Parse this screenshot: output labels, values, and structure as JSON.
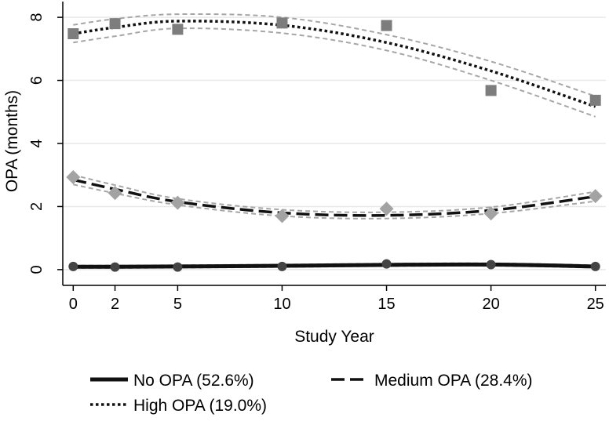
{
  "chart_data": {
    "type": "line",
    "xlabel": "Study Year",
    "ylabel": "OPA (months)",
    "x": [
      0,
      2,
      5,
      10,
      15,
      20,
      25
    ],
    "xticks": [
      "0",
      "2",
      "5",
      "10",
      "15",
      "20",
      "25"
    ],
    "yticks": [
      "0",
      "2",
      "4",
      "6",
      "8"
    ],
    "xlim": [
      -0.5,
      25.5
    ],
    "ylim": [
      -0.5,
      8.5
    ],
    "grid": true,
    "legend_position": "bottom",
    "series": [
      {
        "name": "No OPA (52.6%)",
        "marker": "circle",
        "line_style": "solid",
        "observed": [
          0.1,
          0.08,
          0.08,
          0.1,
          0.18,
          0.16,
          0.1
        ],
        "fitted": [
          0.09,
          0.09,
          0.1,
          0.12,
          0.15,
          0.16,
          0.1
        ],
        "ci_lower": [
          0.05,
          0.05,
          0.06,
          0.08,
          0.11,
          0.12,
          0.06
        ],
        "ci_upper": [
          0.13,
          0.13,
          0.14,
          0.16,
          0.19,
          0.2,
          0.14
        ]
      },
      {
        "name": "Medium OPA (28.4%)",
        "marker": "diamond",
        "line_style": "dashed",
        "observed": [
          2.93,
          2.43,
          2.12,
          1.7,
          1.93,
          1.78,
          2.33
        ],
        "fitted": [
          2.85,
          2.55,
          2.15,
          1.8,
          1.72,
          1.88,
          2.32
        ],
        "ci_lower": [
          2.7,
          2.42,
          2.05,
          1.7,
          1.62,
          1.78,
          2.17
        ],
        "ci_upper": [
          3.0,
          2.68,
          2.25,
          1.9,
          1.82,
          1.98,
          2.47
        ]
      },
      {
        "name": "High OPA (19.0%)",
        "marker": "square",
        "line_style": "dotted",
        "observed": [
          7.48,
          7.8,
          7.62,
          7.82,
          7.74,
          5.68,
          5.37
        ],
        "fitted": [
          7.48,
          7.68,
          7.88,
          7.75,
          7.2,
          6.3,
          5.17
        ],
        "ci_lower": [
          7.2,
          7.4,
          7.65,
          7.5,
          6.95,
          6.0,
          4.85
        ],
        "ci_upper": [
          7.76,
          7.95,
          8.1,
          8.0,
          7.45,
          6.6,
          5.5
        ]
      }
    ]
  },
  "colors": {
    "fitted_line": "#111111",
    "ci_band": "#a6a6a6",
    "no_opa_marker": "#444444",
    "medium_opa_marker": "#a3a3a3",
    "high_opa_marker": "#7d7d7d",
    "grid": "#e8e8e8"
  }
}
